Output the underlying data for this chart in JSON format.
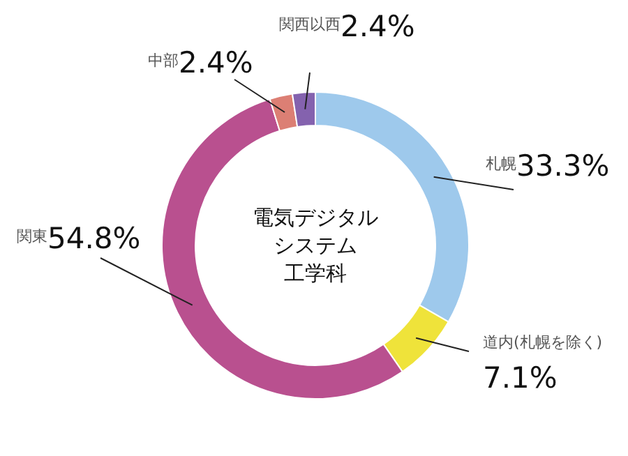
{
  "chart_data": {
    "type": "donut",
    "title": "電気デジタルシステム工学科",
    "categories": [
      "札幌",
      "道内(札幌を除く)",
      "関東",
      "中部",
      "関西以西"
    ],
    "values": [
      33.3,
      7.1,
      54.8,
      2.4,
      2.4
    ],
    "value_labels": [
      "33.3%",
      "7.1%",
      "54.8%",
      "2.4%",
      "2.4%"
    ],
    "colors": [
      "#9ec9ec",
      "#efe33a",
      "#b9508f",
      "#dc7f74",
      "#8462ae"
    ]
  }
}
